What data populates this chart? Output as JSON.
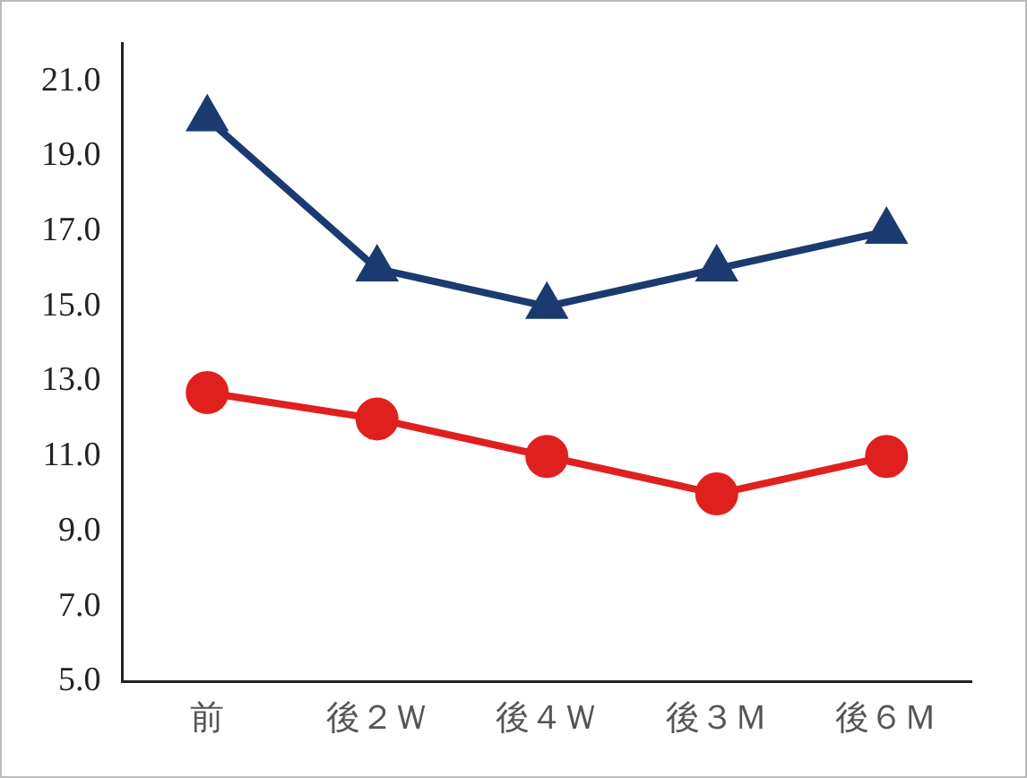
{
  "chart_data": {
    "type": "line",
    "categories": [
      "前",
      "後２Ｗ",
      "後４Ｗ",
      "後３Ｍ",
      "後６Ｍ"
    ],
    "series": [
      {
        "color": "#1b3a70",
        "marker": "triangle",
        "values": [
          20.0,
          16.0,
          15.0,
          16.0,
          17.0
        ]
      },
      {
        "color": "#e0201e",
        "marker": "circle",
        "values": [
          12.7,
          12.0,
          11.0,
          10.0,
          11.0
        ]
      }
    ],
    "ylim": [
      5.0,
      22.0
    ],
    "yticks": [
      {
        "value": 5,
        "label": "5.0"
      },
      {
        "value": 7,
        "label": "7.0"
      },
      {
        "value": 9,
        "label": "9.0"
      },
      {
        "value": 11,
        "label": "11.0"
      },
      {
        "value": 13,
        "label": "13.0"
      },
      {
        "value": 15,
        "label": "15.0"
      },
      {
        "value": 17,
        "label": "17.0"
      },
      {
        "value": 19,
        "label": "19.0"
      },
      {
        "value": 21,
        "label": "21.0"
      }
    ],
    "grid": false,
    "legend": false,
    "line_style": "solid"
  }
}
